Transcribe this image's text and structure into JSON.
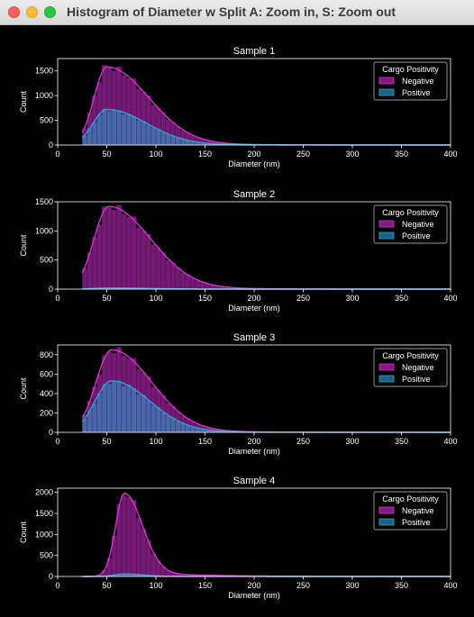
{
  "window": {
    "title": "Histogram of Diameter w Split A: Zoom in, S: Zoom out",
    "controls": [
      "close",
      "minimize",
      "zoom"
    ]
  },
  "chart_data": [
    {
      "type": "bar",
      "title": "Sample 1",
      "xlabel": "Diameter (nm)",
      "ylabel": "Count",
      "xlim": [
        0,
        400
      ],
      "ylim": [
        0,
        1750
      ],
      "xticks": [
        0,
        50,
        100,
        150,
        200,
        250,
        300,
        350,
        400
      ],
      "yticks": [
        0,
        500,
        1000,
        1500
      ],
      "legend": {
        "title": "Cargo Positivity",
        "entries": [
          "Negative",
          "Positive"
        ],
        "position": "top-right"
      },
      "series": [
        {
          "name": "Negative",
          "color": "#d62fd3",
          "peak_x": 50,
          "peak_count": 1580,
          "tail": 42,
          "rise": 13
        },
        {
          "name": "Positive",
          "color": "#2aa6d9",
          "peak_x": 50,
          "peak_count": 720,
          "tail": 40,
          "rise": 14
        }
      ]
    },
    {
      "type": "bar",
      "title": "Sample 2",
      "xlabel": "Diameter (nm)",
      "ylabel": "Count",
      "xlim": [
        0,
        400
      ],
      "ylim": [
        0,
        1500
      ],
      "xticks": [
        0,
        50,
        100,
        150,
        200,
        250,
        300,
        350,
        400
      ],
      "yticks": [
        0,
        500,
        1000,
        1500
      ],
      "legend": {
        "title": "Cargo Positivity",
        "entries": [
          "Negative",
          "Positive"
        ],
        "position": "top-right"
      },
      "series": [
        {
          "name": "Negative",
          "color": "#d62fd3",
          "peak_x": 52,
          "peak_count": 1420,
          "tail": 42,
          "rise": 15
        },
        {
          "name": "Positive",
          "color": "#2aa6d9",
          "peak_x": 52,
          "peak_count": 20,
          "tail": 40,
          "rise": 15
        }
      ]
    },
    {
      "type": "bar",
      "title": "Sample 3",
      "xlabel": "Diameter (nm)",
      "ylabel": "Count",
      "xlim": [
        0,
        400
      ],
      "ylim": [
        0,
        900
      ],
      "xticks": [
        0,
        50,
        100,
        150,
        200,
        250,
        300,
        350,
        400
      ],
      "yticks": [
        0,
        200,
        400,
        600,
        800
      ],
      "legend": {
        "title": "Cargo Positivity",
        "entries": [
          "Negative",
          "Positive"
        ],
        "position": "top-right"
      },
      "series": [
        {
          "name": "Negative",
          "color": "#d62fd3",
          "peak_x": 55,
          "peak_count": 850,
          "tail": 40,
          "rise": 16
        },
        {
          "name": "Positive",
          "color": "#2aa6d9",
          "peak_x": 55,
          "peak_count": 530,
          "tail": 38,
          "rise": 17
        }
      ]
    },
    {
      "type": "bar",
      "title": "Sample 4",
      "xlabel": "Diameter (nm)",
      "ylabel": "Count",
      "xlim": [
        0,
        400
      ],
      "ylim": [
        0,
        2100
      ],
      "xticks": [
        0,
        50,
        100,
        150,
        200,
        250,
        300,
        350,
        400
      ],
      "yticks": [
        0,
        500,
        1000,
        1500,
        2000
      ],
      "legend": {
        "title": "Cargo Positivity",
        "entries": [
          "Negative",
          "Positive"
        ],
        "position": "top-right"
      },
      "series": [
        {
          "name": "Negative",
          "color": "#d62fd3",
          "peak_x": 68,
          "peak_count": 1980,
          "tail": 18,
          "rise": 9
        },
        {
          "name": "Positive",
          "color": "#2aa6d9",
          "peak_x": 68,
          "peak_count": 60,
          "tail": 18,
          "rise": 10
        }
      ]
    }
  ]
}
